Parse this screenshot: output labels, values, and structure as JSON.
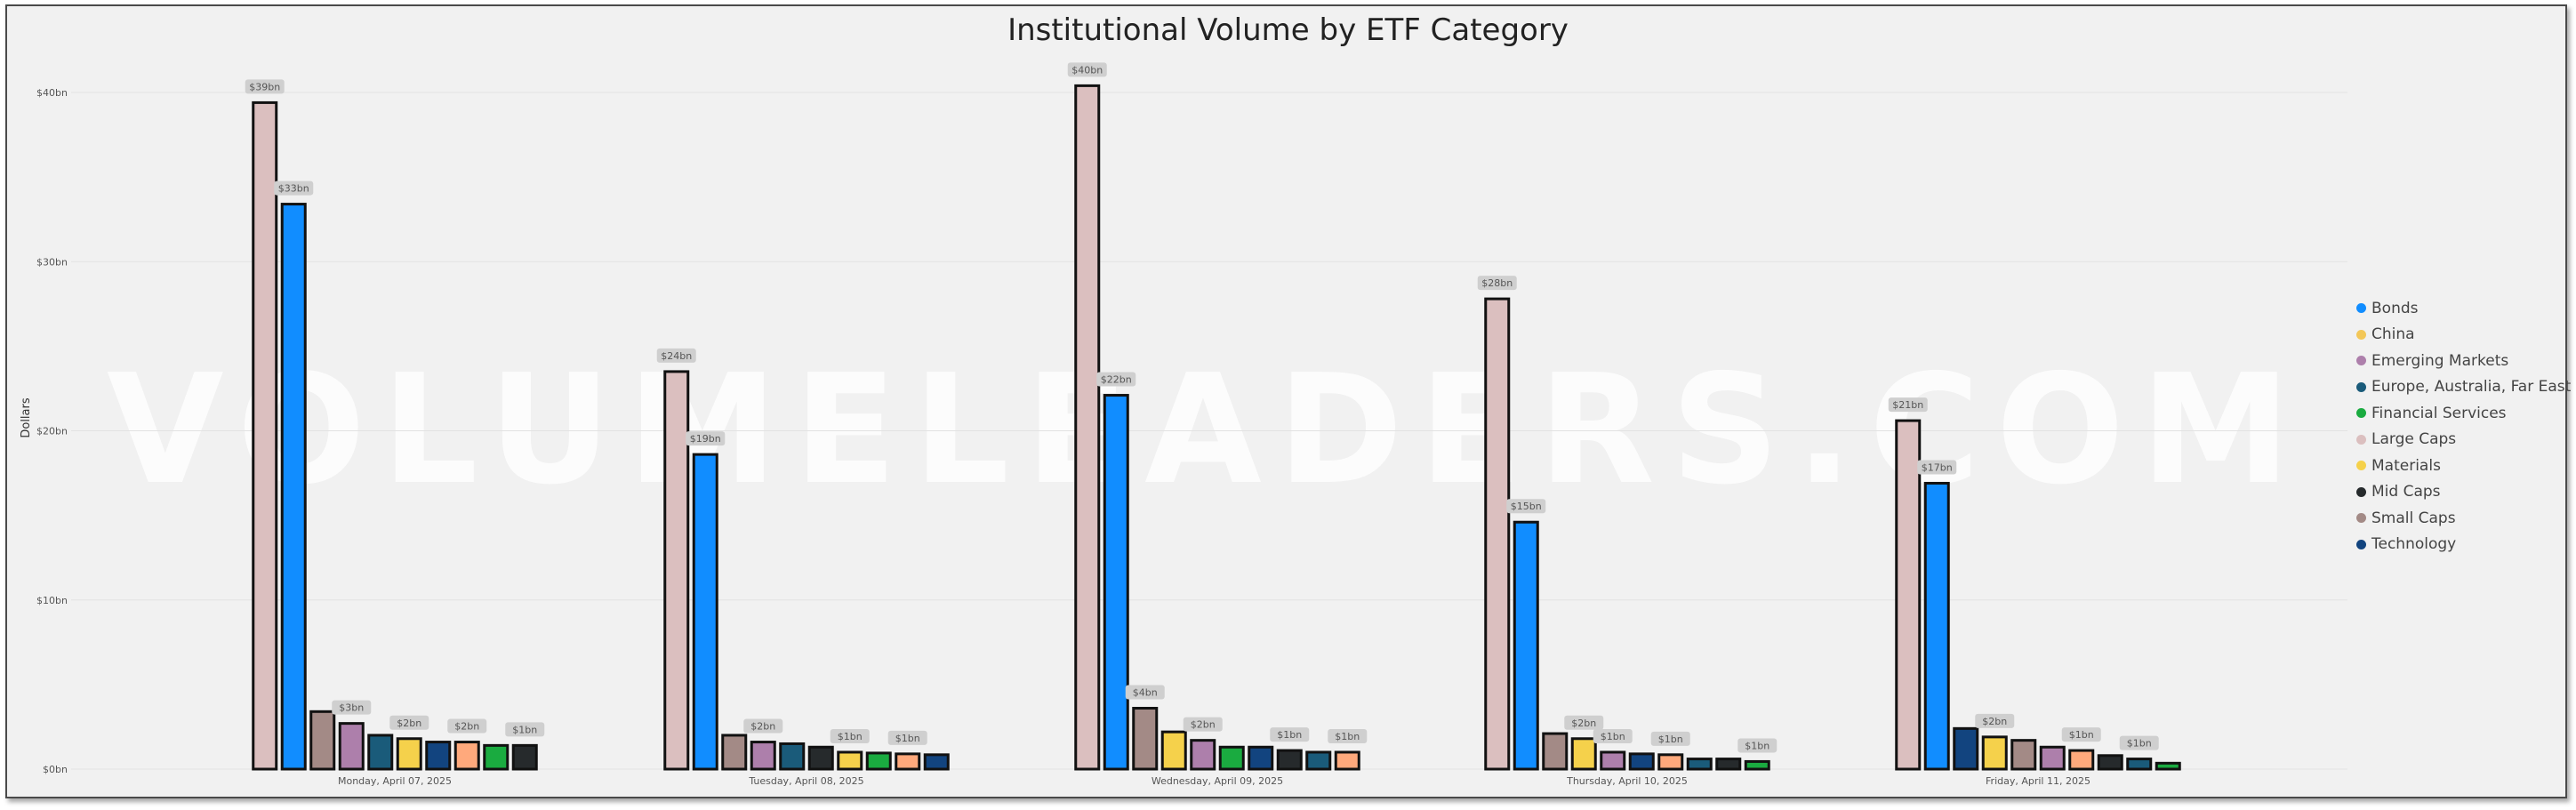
{
  "chart_data": {
    "type": "bar",
    "title": "Institutional Volume by ETF Category",
    "ylabel": "Dollars",
    "xlabel": "",
    "ylim": [
      0,
      40
    ],
    "yticks": [
      {
        "value": 0,
        "label": "$0bn"
      },
      {
        "value": 10,
        "label": "$10bn"
      },
      {
        "value": 20,
        "label": "$20bn"
      },
      {
        "value": 30,
        "label": "$30bn"
      },
      {
        "value": 40,
        "label": "$40bn"
      }
    ],
    "watermark": "VOLUMELEADERS.COM",
    "legend_position": "right",
    "legend": [
      {
        "name": "Bonds",
        "color": "#118dff"
      },
      {
        "name": "China",
        "color": "#f3c758"
      },
      {
        "name": "Emerging Markets",
        "color": "#ad7fab"
      },
      {
        "name": "Europe, Australia, Far East",
        "color": "#1a5b7a"
      },
      {
        "name": "Financial Services",
        "color": "#1aab40"
      },
      {
        "name": "Large Caps",
        "color": "#dbbfbf"
      },
      {
        "name": "Materials",
        "color": "#f5d14b"
      },
      {
        "name": "Mid Caps",
        "color": "#262a2c"
      },
      {
        "name": "Small Caps",
        "color": "#a38a86"
      },
      {
        "name": "Technology",
        "color": "#12447f"
      }
    ],
    "groups": [
      {
        "label": "Monday, April 07, 2025",
        "bars": [
          {
            "value": 39.4,
            "color": "#dbbfbf",
            "label": "$39bn"
          },
          {
            "value": 33.4,
            "color": "#118dff",
            "label": "$33bn"
          },
          {
            "value": 3.4,
            "color": "#a38a86",
            "label": ""
          },
          {
            "value": 2.7,
            "color": "#ad7fab",
            "label": "$3bn"
          },
          {
            "value": 2.0,
            "color": "#1a5b7a",
            "label": ""
          },
          {
            "value": 1.8,
            "color": "#f5d14b",
            "label": "$2bn"
          },
          {
            "value": 1.6,
            "color": "#12447f",
            "label": ""
          },
          {
            "value": 1.6,
            "color": "#ffa97c",
            "label": "$2bn"
          },
          {
            "value": 1.4,
            "color": "#1aab40",
            "label": ""
          },
          {
            "value": 1.4,
            "color": "#262a2c",
            "label": "$1bn"
          }
        ]
      },
      {
        "label": "Tuesday, April 08, 2025",
        "bars": [
          {
            "value": 23.5,
            "color": "#dbbfbf",
            "label": "$24bn"
          },
          {
            "value": 18.6,
            "color": "#118dff",
            "label": "$19bn"
          },
          {
            "value": 2.0,
            "color": "#a38a86",
            "label": ""
          },
          {
            "value": 1.6,
            "color": "#ad7fab",
            "label": "$2bn"
          },
          {
            "value": 1.5,
            "color": "#1a5b7a",
            "label": ""
          },
          {
            "value": 1.3,
            "color": "#262a2c",
            "label": ""
          },
          {
            "value": 1.0,
            "color": "#f5d14b",
            "label": "$1bn"
          },
          {
            "value": 0.95,
            "color": "#1aab40",
            "label": ""
          },
          {
            "value": 0.9,
            "color": "#ffa97c",
            "label": "$1bn"
          },
          {
            "value": 0.85,
            "color": "#12447f",
            "label": ""
          }
        ]
      },
      {
        "label": "Wednesday, April 09, 2025",
        "bars": [
          {
            "value": 40.4,
            "color": "#dbbfbf",
            "label": "$40bn"
          },
          {
            "value": 22.1,
            "color": "#118dff",
            "label": "$22bn"
          },
          {
            "value": 3.6,
            "color": "#a38a86",
            "label": "$4bn"
          },
          {
            "value": 2.2,
            "color": "#f5d14b",
            "label": ""
          },
          {
            "value": 1.7,
            "color": "#ad7fab",
            "label": "$2bn"
          },
          {
            "value": 1.3,
            "color": "#1aab40",
            "label": ""
          },
          {
            "value": 1.3,
            "color": "#12447f",
            "label": ""
          },
          {
            "value": 1.1,
            "color": "#262a2c",
            "label": "$1bn"
          },
          {
            "value": 1.0,
            "color": "#1a5b7a",
            "label": ""
          },
          {
            "value": 1.0,
            "color": "#ffa97c",
            "label": "$1bn"
          }
        ]
      },
      {
        "label": "Thursday, April 10, 2025",
        "bars": [
          {
            "value": 27.8,
            "color": "#dbbfbf",
            "label": "$28bn"
          },
          {
            "value": 14.6,
            "color": "#118dff",
            "label": "$15bn"
          },
          {
            "value": 2.1,
            "color": "#a38a86",
            "label": ""
          },
          {
            "value": 1.8,
            "color": "#f5d14b",
            "label": "$2bn"
          },
          {
            "value": 1.0,
            "color": "#ad7fab",
            "label": "$1bn"
          },
          {
            "value": 0.9,
            "color": "#12447f",
            "label": ""
          },
          {
            "value": 0.85,
            "color": "#ffa97c",
            "label": "$1bn"
          },
          {
            "value": 0.6,
            "color": "#1a5b7a",
            "label": ""
          },
          {
            "value": 0.6,
            "color": "#262a2c",
            "label": ""
          },
          {
            "value": 0.45,
            "color": "#1aab40",
            "label": "$1bn"
          }
        ]
      },
      {
        "label": "Friday, April 11, 2025",
        "bars": [
          {
            "value": 20.6,
            "color": "#dbbfbf",
            "label": "$21bn"
          },
          {
            "value": 16.9,
            "color": "#118dff",
            "label": "$17bn"
          },
          {
            "value": 2.4,
            "color": "#12447f",
            "label": ""
          },
          {
            "value": 1.9,
            "color": "#f5d14b",
            "label": "$2bn"
          },
          {
            "value": 1.7,
            "color": "#a38a86",
            "label": ""
          },
          {
            "value": 1.3,
            "color": "#ad7fab",
            "label": ""
          },
          {
            "value": 1.1,
            "color": "#ffa97c",
            "label": "$1bn"
          },
          {
            "value": 0.8,
            "color": "#262a2c",
            "label": ""
          },
          {
            "value": 0.6,
            "color": "#1a5b7a",
            "label": "$1bn"
          },
          {
            "value": 0.35,
            "color": "#1aab40",
            "label": ""
          }
        ]
      }
    ]
  }
}
